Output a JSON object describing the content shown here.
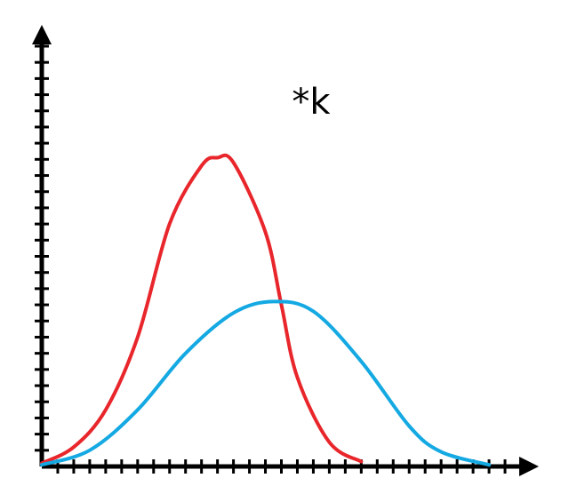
{
  "chart_data": {
    "type": "line",
    "annotation": "*k",
    "xlim": [
      0,
      30
    ],
    "ylim": [
      0,
      26
    ],
    "x_ticks": 30,
    "y_ticks": 26,
    "grid": false,
    "series": [
      {
        "color": "#e8262b",
        "points": [
          [
            0,
            0.2
          ],
          [
            2,
            1.2
          ],
          [
            4,
            3.5
          ],
          [
            6,
            8.0
          ],
          [
            8,
            15.0
          ],
          [
            10,
            18.6
          ],
          [
            11,
            19.1
          ],
          [
            12,
            18.8
          ],
          [
            14,
            14.5
          ],
          [
            15,
            10.0
          ],
          [
            16,
            5.5
          ],
          [
            18,
            1.5
          ],
          [
            20,
            0.3
          ]
        ]
      },
      {
        "color": "#14a9e2",
        "points": [
          [
            0,
            0.1
          ],
          [
            3,
            1.0
          ],
          [
            6,
            3.5
          ],
          [
            9,
            7.0
          ],
          [
            12,
            9.5
          ],
          [
            14.5,
            10.2
          ],
          [
            17,
            9.6
          ],
          [
            20,
            6.5
          ],
          [
            23,
            2.5
          ],
          [
            25,
            0.9
          ],
          [
            28,
            0.1
          ]
        ]
      }
    ]
  },
  "colors": {
    "axis": "#000000"
  }
}
